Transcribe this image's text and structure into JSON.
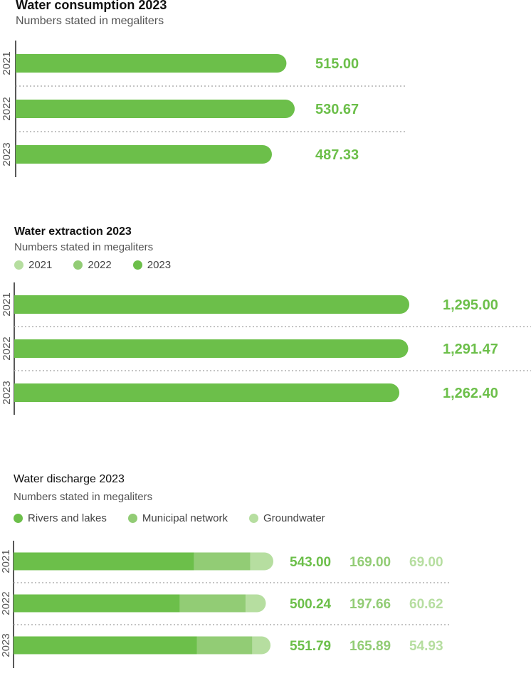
{
  "colors": {
    "dark": "#6cbf4a",
    "mid": "#92cc75",
    "light": "#b6dea0",
    "year_label": "#555555",
    "axis": "#222222",
    "divider": "#b0b0b0"
  },
  "chart_data": [
    {
      "type": "bar",
      "orientation": "horizontal",
      "title": "Water consumption 2023",
      "subtitle": "Numbers stated in megaliters",
      "categories": [
        "2021",
        "2022",
        "2023"
      ],
      "values": [
        515.0,
        530.67,
        487.33
      ],
      "value_labels": [
        "515.00",
        "530.67",
        "487.33"
      ],
      "legend": []
    },
    {
      "type": "bar",
      "orientation": "horizontal",
      "title": "Water extraction 2023",
      "subtitle": "Numbers stated in megaliters",
      "categories": [
        "2021",
        "2022",
        "2023"
      ],
      "values": [
        1295.0,
        1291.47,
        1262.4
      ],
      "value_labels": [
        "1,295.00",
        "1,291.47",
        "1,262.40"
      ],
      "legend": [
        "2021",
        "2022",
        "2023"
      ]
    },
    {
      "type": "bar",
      "orientation": "horizontal",
      "stacked": true,
      "title": "Water discharge 2023",
      "subtitle": "Numbers stated in megaliters",
      "categories": [
        "2021",
        "2022",
        "2023"
      ],
      "legend": [
        "Rivers and lakes",
        "Municipal network",
        "Groundwater"
      ],
      "series": [
        {
          "name": "Rivers and lakes",
          "values": [
            543.0,
            500.24,
            551.79
          ],
          "labels": [
            "543.00",
            "500.24",
            "551.79"
          ]
        },
        {
          "name": "Municipal network",
          "values": [
            169.0,
            197.66,
            165.89
          ],
          "labels": [
            "169.00",
            "197.66",
            "165.89"
          ]
        },
        {
          "name": "Groundwater",
          "values": [
            69.0,
            60.62,
            54.93
          ],
          "labels": [
            "69.00",
            "60.62",
            "54.93"
          ]
        }
      ]
    }
  ]
}
